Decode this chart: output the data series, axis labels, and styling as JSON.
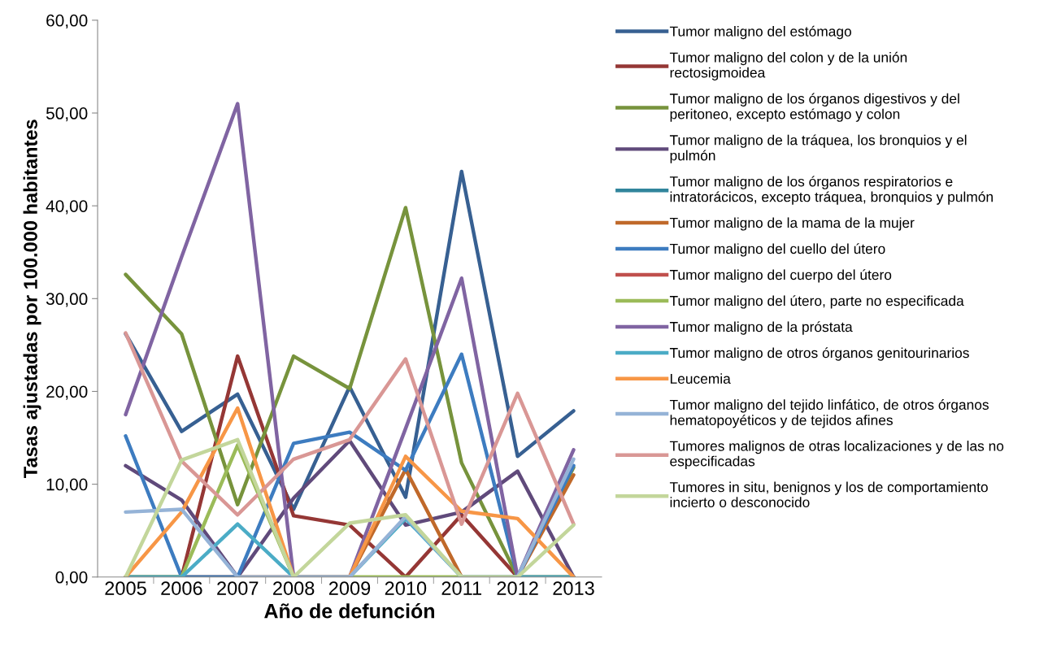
{
  "chart_data": {
    "type": "line",
    "xlabel": "Año de defunción",
    "ylabel": "Tasas ajustadas por 100.000 habitantes",
    "categories": [
      "2005",
      "2006",
      "2007",
      "2008",
      "2009",
      "2010",
      "2011",
      "2012",
      "2013"
    ],
    "ylim": [
      0,
      60
    ],
    "yticks": [
      {
        "value": 0,
        "label": "0,00"
      },
      {
        "value": 10,
        "label": "10,00"
      },
      {
        "value": 20,
        "label": "20,00"
      },
      {
        "value": 30,
        "label": "30,00"
      },
      {
        "value": 40,
        "label": "40,00"
      },
      {
        "value": 50,
        "label": "50,00"
      },
      {
        "value": 60,
        "label": "60,00"
      }
    ],
    "grid": false,
    "legend": "right",
    "marker": "none",
    "line_style": "solid",
    "series": [
      {
        "name": "Tumor maligno del estómago",
        "color": "#376092",
        "values": [
          26.2,
          15.7,
          19.7,
          7.3,
          20.5,
          8.6,
          43.7,
          13.0,
          17.9
        ]
      },
      {
        "name": "Tumor maligno del colon y de la unión\nrectosigmoidea",
        "color": "#953735",
        "values": [
          0,
          0,
          23.8,
          6.6,
          5.6,
          0,
          6.7,
          0,
          0
        ]
      },
      {
        "name": "Tumor maligno de los órganos digestivos y del\nperitoneo, excepto estómago y colon",
        "color": "#77933C",
        "values": [
          32.6,
          26.2,
          7.8,
          23.8,
          20.3,
          39.8,
          12.3,
          0,
          11.8
        ]
      },
      {
        "name": "Tumor maligno de la tráquea, los bronquios y el\npulmón",
        "color": "#604A7B",
        "values": [
          12.0,
          8.3,
          0,
          8.5,
          14.7,
          5.6,
          7.0,
          11.4,
          0
        ]
      },
      {
        "name": "Tumor maligno de los órganos respiratorios e\nintratorácicos, excepto tráquea, bronquios y pulmón",
        "color": "#31859C",
        "values": [
          null,
          null,
          null,
          null,
          null,
          null,
          null,
          null,
          null
        ]
      },
      {
        "name": "Tumor maligno de la mama de la mujer",
        "color": "#C0692A",
        "values": [
          0,
          0,
          0,
          0,
          0,
          11.6,
          0,
          0,
          11.0
        ]
      },
      {
        "name": "Tumor maligno del cuello del útero",
        "color": "#3D7CC0",
        "values": [
          15.2,
          0,
          0,
          14.4,
          15.6,
          11.5,
          24.0,
          0,
          12.0
        ]
      },
      {
        "name": "Tumor maligno del cuerpo del útero",
        "color": "#C0504D",
        "values": [
          null,
          null,
          null,
          null,
          null,
          null,
          null,
          null,
          null
        ]
      },
      {
        "name": "Tumor maligno del útero, parte no especificada",
        "color": "#9BBB59",
        "values": [
          0,
          0,
          14.2,
          0,
          0,
          0,
          0,
          0,
          0
        ]
      },
      {
        "name": "Tumor maligno de la próstata",
        "color": "#8064A2",
        "values": [
          17.5,
          34.5,
          51.0,
          0,
          0,
          16.0,
          32.2,
          0,
          13.7
        ]
      },
      {
        "name": "Tumor maligno de otros órganos genitourinarios",
        "color": "#4BACC6",
        "values": [
          0,
          0,
          5.7,
          0,
          0,
          6.3,
          0,
          0,
          0
        ]
      },
      {
        "name": "Leucemia",
        "color": "#F79646",
        "values": [
          0,
          7.0,
          18.2,
          0,
          0,
          13.0,
          7.1,
          6.3,
          0
        ]
      },
      {
        "name": "Tumor maligno del tejido linfático, de otros órganos\nhematopoyéticos y de tejidos afines",
        "color": "#95B3D7",
        "values": [
          7.0,
          7.3,
          0,
          0,
          0,
          6.5,
          0,
          0,
          12.7
        ]
      },
      {
        "name": "Tumores malignos de otras localizaciones y de las no\nespecificadas",
        "color": "#D99795",
        "values": [
          26.3,
          12.5,
          6.7,
          12.7,
          14.8,
          23.5,
          5.7,
          19.8,
          5.7
        ]
      },
      {
        "name": "Tumores in situ, benignos y los de comportamiento\nincierto o desconocido",
        "color": "#C3D69B",
        "values": [
          0,
          12.6,
          14.8,
          0,
          5.8,
          6.7,
          0,
          0,
          5.6
        ]
      }
    ]
  }
}
